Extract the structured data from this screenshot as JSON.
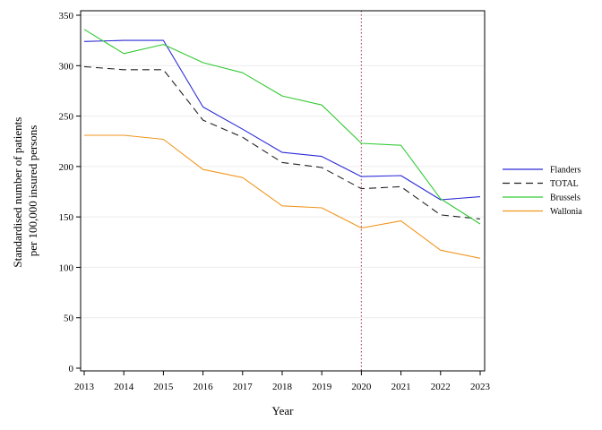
{
  "chart_data": {
    "type": "line",
    "title": "",
    "xlabel": "Year",
    "ylabel_lines": [
      "Standardised number of patients",
      "per 100,000 insured persons"
    ],
    "x": [
      2013,
      2014,
      2015,
      2016,
      2017,
      2018,
      2019,
      2020,
      2021,
      2022,
      2023
    ],
    "xlim": [
      2013,
      2023
    ],
    "ylim": [
      0,
      350
    ],
    "yticks": [
      0,
      50,
      100,
      150,
      200,
      250,
      300,
      350
    ],
    "grid": true,
    "legend_position": "right",
    "reference_line": {
      "x": 2020,
      "style": "dotted",
      "color": "#b05070"
    },
    "series": [
      {
        "name": "Flanders",
        "color": "#2b2bd6",
        "dash": "solid",
        "values": [
          324,
          325,
          325,
          259,
          237,
          214,
          210,
          190,
          191,
          167,
          170
        ]
      },
      {
        "name": "TOTAL",
        "color": "#222222",
        "dash": "dashed",
        "values": [
          299,
          296,
          296,
          246,
          229,
          204,
          199,
          178,
          180,
          152,
          148
        ]
      },
      {
        "name": "Brussels",
        "color": "#33c933",
        "dash": "solid",
        "values": [
          336,
          312,
          321,
          303,
          293,
          270,
          261,
          223,
          221,
          168,
          143
        ]
      },
      {
        "name": "Wallonia",
        "color": "#f0961e",
        "dash": "solid",
        "values": [
          231,
          231,
          227,
          197,
          189,
          161,
          159,
          139,
          146,
          117,
          109
        ]
      }
    ]
  }
}
